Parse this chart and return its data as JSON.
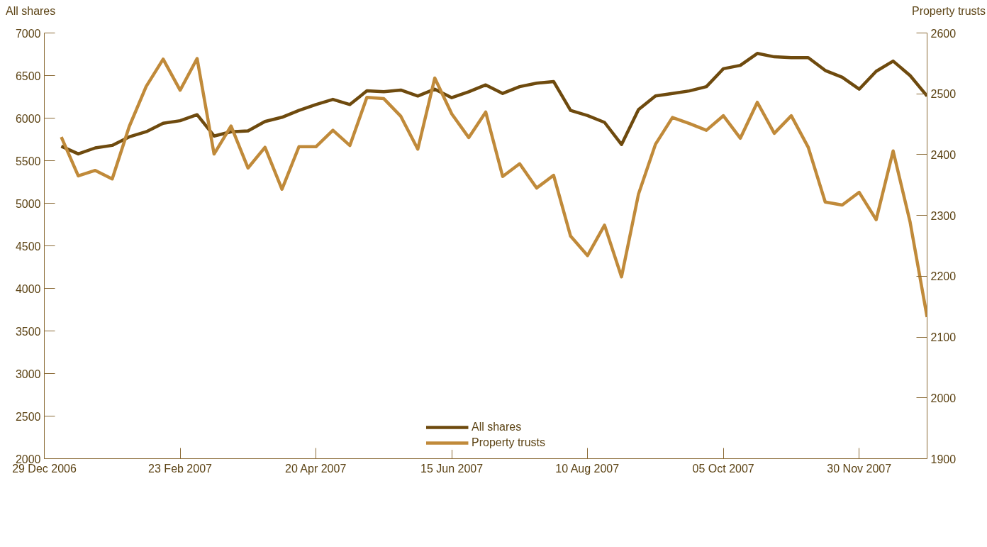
{
  "chart_data": {
    "type": "line",
    "ylabel": "All shares",
    "y2label": "Property trusts",
    "x": [
      "2007-01-05",
      "2007-01-12",
      "2007-01-19",
      "2007-01-26",
      "2007-02-02",
      "2007-02-09",
      "2007-02-16",
      "2007-02-23",
      "2007-03-02",
      "2007-03-09",
      "2007-03-16",
      "2007-03-23",
      "2007-03-30",
      "2007-04-06",
      "2007-04-13",
      "2007-04-20",
      "2007-04-27",
      "2007-05-04",
      "2007-05-11",
      "2007-05-18",
      "2007-05-25",
      "2007-06-01",
      "2007-06-08",
      "2007-06-15",
      "2007-06-22",
      "2007-06-29",
      "2007-07-06",
      "2007-07-13",
      "2007-07-20",
      "2007-07-27",
      "2007-08-03",
      "2007-08-10",
      "2007-08-17",
      "2007-08-24",
      "2007-08-31",
      "2007-09-07",
      "2007-09-14",
      "2007-09-21",
      "2007-09-28",
      "2007-10-05",
      "2007-10-12",
      "2007-10-19",
      "2007-10-26",
      "2007-11-02",
      "2007-11-09",
      "2007-11-16",
      "2007-11-23",
      "2007-11-30",
      "2007-12-07",
      "2007-12-14",
      "2007-12-21",
      "2007-12-28"
    ],
    "series": [
      {
        "name": "All shares",
        "color": "#6e4a0e",
        "values": [
          5670,
          5580,
          5650,
          5680,
          5780,
          5840,
          5940,
          5970,
          6040,
          5790,
          5840,
          5850,
          5960,
          6010,
          6090,
          6160,
          6220,
          6160,
          6320,
          6310,
          6330,
          6260,
          6340,
          6240,
          6310,
          6390,
          6290,
          6370,
          6410,
          6430,
          6090,
          6030,
          5950,
          5690,
          6100,
          6260,
          6290,
          6320,
          6370,
          6580,
          6620,
          6760,
          6720,
          6710,
          6710,
          6560,
          6480,
          6340,
          6550,
          6670,
          6500,
          6260
        ]
      },
      {
        "name": "Property trusts",
        "color": "#c08a3a",
        "axis": "y2",
        "values": [
          2429,
          2365,
          2374,
          2360,
          2446,
          2512,
          2557,
          2506,
          2558,
          2401,
          2447,
          2378,
          2412,
          2343,
          2413,
          2413,
          2440,
          2415,
          2494,
          2492,
          2463,
          2409,
          2526,
          2467,
          2428,
          2470,
          2364,
          2385,
          2345,
          2366,
          2266,
          2234,
          2284,
          2199,
          2335,
          2417,
          2461,
          2451,
          2440,
          2464,
          2427,
          2486,
          2435,
          2464,
          2412,
          2322,
          2317,
          2338,
          2293,
          2406,
          2289,
          2133
        ]
      }
    ],
    "xlim": [
      "2006-12-29",
      "2007-12-28"
    ],
    "xticks": [
      {
        "value": "2006-12-29",
        "label": "29 Dec 2006"
      },
      {
        "value": "2007-02-23",
        "label": "23 Feb 2007"
      },
      {
        "value": "2007-04-20",
        "label": "20 Apr 2007"
      },
      {
        "value": "2007-06-15",
        "label": "15 Jun 2007"
      },
      {
        "value": "2007-08-10",
        "label": "10 Aug 2007"
      },
      {
        "value": "2007-10-05",
        "label": "05 Oct 2007"
      },
      {
        "value": "2007-11-30",
        "label": "30 Nov 2007"
      }
    ],
    "ylim": [
      2000,
      7000
    ],
    "yticks": [
      2000,
      2500,
      3000,
      3500,
      4000,
      4500,
      5000,
      5500,
      6000,
      6500,
      7000
    ],
    "y2lim": [
      1900,
      2600
    ],
    "y2ticks": [
      1900,
      2000,
      2100,
      2200,
      2300,
      2400,
      2500,
      2600
    ],
    "grid": false,
    "legend": "bottom",
    "line_style": "solid"
  }
}
